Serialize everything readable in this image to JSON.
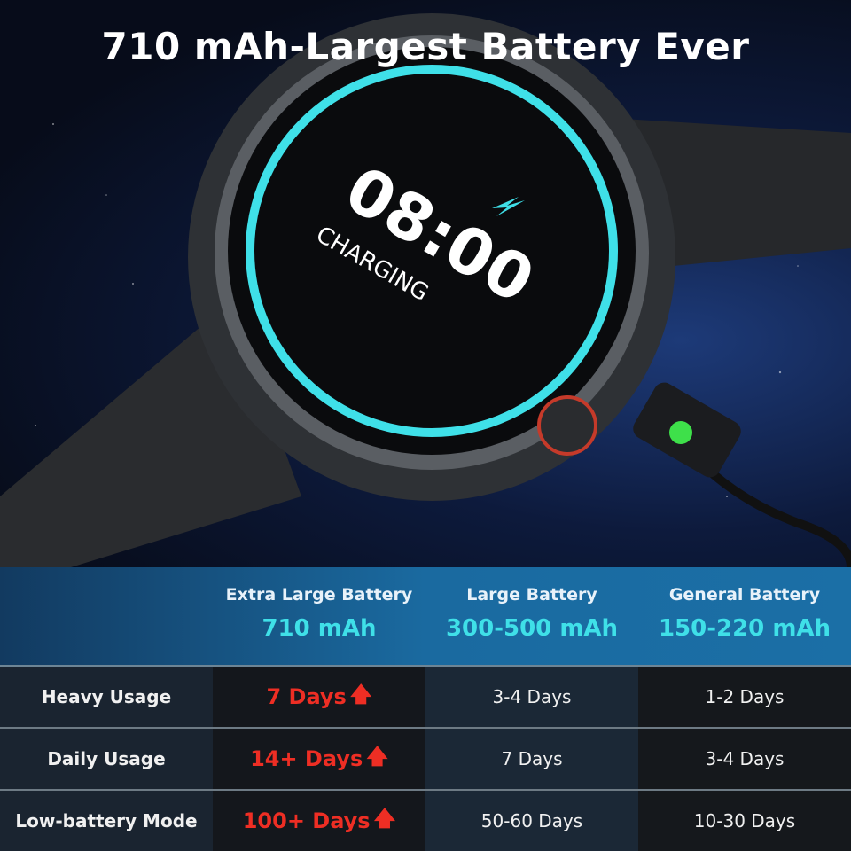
{
  "title": "710 mAh-Largest Battery Ever",
  "watch_screen": {
    "time": "08:00",
    "status": "CHARGING",
    "icon": "lightning-bolt-icon"
  },
  "colors": {
    "accent_teal": "#3fe0e8",
    "highlight_red": "#ee2e24",
    "charger_led": "#3ee04a"
  },
  "table": {
    "columns": [
      {
        "name": "Extra Large Battery",
        "capacity": "710 mAh"
      },
      {
        "name": "Large Battery",
        "capacity": "300-500 mAh"
      },
      {
        "name": "General Battery",
        "capacity": "150-220 mAh"
      }
    ],
    "rows": [
      {
        "label": "Heavy Usage",
        "values": [
          "7 Days",
          "3-4 Days",
          "1-2 Days"
        ]
      },
      {
        "label": "Daily Usage",
        "values": [
          "14+ Days",
          "7 Days",
          "3-4 Days"
        ]
      },
      {
        "label": "Low-battery Mode",
        "values": [
          "100+ Days",
          "50-60 Days",
          "10-30 Days"
        ]
      }
    ],
    "highlight_icon": "arrow-up-icon"
  }
}
